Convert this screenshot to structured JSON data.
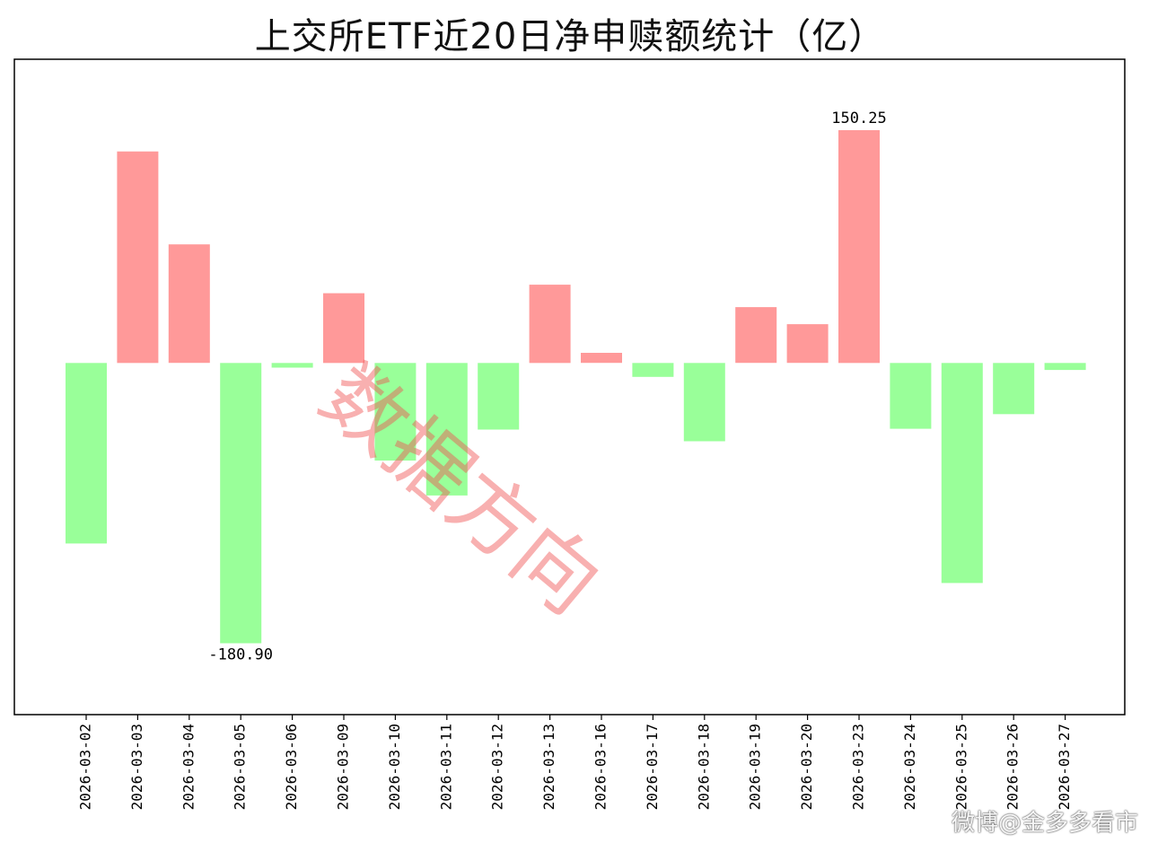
{
  "chart_data": {
    "type": "bar",
    "title": "上交所ETF近20日净申赎额统计（亿）",
    "categories": [
      "2026-03-02",
      "2026-03-03",
      "2026-03-04",
      "2026-03-05",
      "2026-03-06",
      "2026-03-09",
      "2026-03-10",
      "2026-03-11",
      "2026-03-12",
      "2026-03-13",
      "2026-03-16",
      "2026-03-17",
      "2026-03-18",
      "2026-03-19",
      "2026-03-20",
      "2026-03-23",
      "2026-03-24",
      "2026-03-25",
      "2026-03-26",
      "2026-03-27"
    ],
    "values": [
      -116.5,
      136.5,
      76.5,
      -180.9,
      -3.0,
      45.0,
      -63.0,
      -85.5,
      -43.0,
      50.5,
      6.5,
      -9.0,
      -50.5,
      36.0,
      25.0,
      150.25,
      -42.5,
      -142.0,
      -33.0,
      -4.5
    ],
    "annotations": [
      {
        "category": "2026-03-23",
        "text": "150.25"
      },
      {
        "category": "2026-03-05",
        "text": "-180.90"
      }
    ],
    "ylim": [
      -227,
      196
    ],
    "positive_color": "#ff9999",
    "negative_color": "#99ff99",
    "xlabel": "",
    "ylabel": "",
    "grid": false,
    "legend": "none"
  },
  "watermark": "数据方向",
  "credit": "微博@金多多看市"
}
